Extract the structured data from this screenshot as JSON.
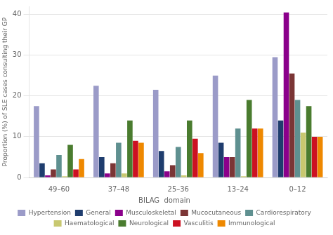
{
  "chart_data": {
    "type": "bar",
    "categories": [
      "49–60",
      "37–48",
      "25–36",
      "13–24",
      "0–12"
    ],
    "series": [
      {
        "name": "Hypertension",
        "color": "#9b9bc8",
        "values": [
          17.5,
          22.5,
          21.5,
          25.0,
          29.5
        ]
      },
      {
        "name": "General",
        "color": "#1f3d6e",
        "values": [
          3.5,
          5.0,
          6.5,
          8.5,
          14.0
        ]
      },
      {
        "name": "Musculoskeletal",
        "color": "#8b008b",
        "values": [
          0.5,
          1.0,
          1.5,
          5.0,
          40.5
        ]
      },
      {
        "name": "Mucocutaneous",
        "color": "#7b3535",
        "values": [
          2.0,
          3.5,
          3.0,
          5.0,
          25.5
        ]
      },
      {
        "name": "Cardiorespiratory",
        "color": "#5f9090",
        "values": [
          5.5,
          8.5,
          7.5,
          12.0,
          19.0
        ]
      },
      {
        "name": "Haematological",
        "color": "#c8c870",
        "values": [
          0.3,
          1.0,
          0.5,
          0.3,
          11.0
        ]
      },
      {
        "name": "Neurological",
        "color": "#4a7c2f",
        "values": [
          8.0,
          14.0,
          14.0,
          19.0,
          17.5
        ]
      },
      {
        "name": "Vasculitis",
        "color": "#cc1122",
        "values": [
          2.0,
          9.0,
          9.5,
          12.0,
          10.0
        ]
      },
      {
        "name": "Immunological",
        "color": "#ee8800",
        "values": [
          4.5,
          8.5,
          6.0,
          12.0,
          10.0
        ]
      }
    ],
    "ylabel": "Proportion (%) of SLE cases consulting their GP",
    "legend_title": "BILAG  domain",
    "legend": "bottom",
    "ylim": [
      0,
      42
    ],
    "yticks": [
      0,
      10,
      20,
      30,
      40
    ],
    "grid": true
  }
}
